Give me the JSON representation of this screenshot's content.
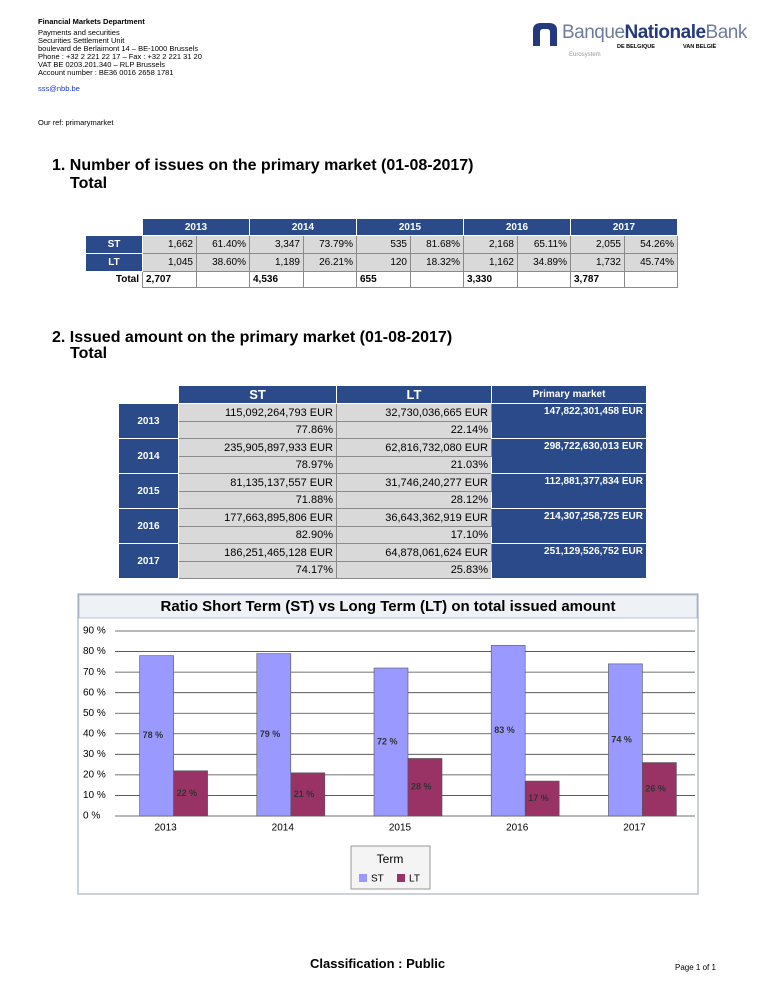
{
  "header": {
    "department": "Financial Markets Department",
    "lines": [
      "Payments and securities",
      "Securities Settlement Unit",
      "boulevard de Berlaimont 14 – BE-1000 Brussels",
      "Phone : +32 2 221 22 17 – Fax : +32 2 221 31 20",
      "VAT BE 0203.201.340 – RLP Brussels",
      "Account number : BE36 0016 2658 1781"
    ],
    "email": "sss@nbb.be",
    "reference": "Our ref: primarymarket",
    "logo": {
      "banque": "Banque",
      "nationale": "Nationale",
      "bank": "Bank",
      "sub_left": "DE BELGIQUE",
      "sub_right": "VAN BELGIË",
      "eurosystem": "Eurosystem"
    }
  },
  "section1": {
    "title": "1. Number of issues on the primary market (01-08-2017)",
    "subtitle": "Total"
  },
  "issues_table": {
    "years": [
      "2013",
      "2014",
      "2015",
      "2016",
      "2017"
    ],
    "rows": [
      {
        "label": "ST",
        "cells": [
          [
            "1,662",
            "61.40%"
          ],
          [
            "3,347",
            "73.79%"
          ],
          [
            "535",
            "81.68%"
          ],
          [
            "2,168",
            "65.11%"
          ],
          [
            "2,055",
            "54.26%"
          ]
        ]
      },
      {
        "label": "LT",
        "cells": [
          [
            "1,045",
            "38.60%"
          ],
          [
            "1,189",
            "26.21%"
          ],
          [
            "120",
            "18.32%"
          ],
          [
            "1,162",
            "34.89%"
          ],
          [
            "1,732",
            "45.74%"
          ]
        ]
      }
    ],
    "total": {
      "label": "Total",
      "cells": [
        "2,707",
        "4,536",
        "655",
        "3,330",
        "3,787"
      ]
    }
  },
  "section2": {
    "title": "2. Issued amount on the primary market (01-08-2017)",
    "subtitle": "Total"
  },
  "amount_table": {
    "headers": [
      "ST",
      "LT",
      "Primary market"
    ],
    "rows": [
      {
        "year": "2013",
        "st_amount": "115,092,264,793 EUR",
        "st_pct": "77.86%",
        "lt_amount": "32,730,036,665 EUR",
        "lt_pct": "22.14%",
        "total": "147,822,301,458 EUR"
      },
      {
        "year": "2014",
        "st_amount": "235,905,897,933 EUR",
        "st_pct": "78.97%",
        "lt_amount": "62,816,732,080 EUR",
        "lt_pct": "21.03%",
        "total": "298,722,630,013 EUR"
      },
      {
        "year": "2015",
        "st_amount": "81,135,137,557 EUR",
        "st_pct": "71.88%",
        "lt_amount": "31,746,240,277 EUR",
        "lt_pct": "28.12%",
        "total": "112,881,377,834 EUR"
      },
      {
        "year": "2016",
        "st_amount": "177,663,895,806 EUR",
        "st_pct": "82.90%",
        "lt_amount": "36,643,362,919 EUR",
        "lt_pct": "17.10%",
        "total": "214,307,258,725 EUR"
      },
      {
        "year": "2017",
        "st_amount": "186,251,465,128 EUR",
        "st_pct": "74.17%",
        "lt_amount": "64,878,061,624 EUR",
        "lt_pct": "25.83%",
        "total": "251,129,526,752 EUR"
      }
    ]
  },
  "chart_data": {
    "type": "bar",
    "title": "Ratio Short Term (ST) vs Long Term (LT) on total issued amount",
    "categories": [
      "2013",
      "2014",
      "2015",
      "2016",
      "2017"
    ],
    "series": [
      {
        "name": "ST",
        "color": "#9999ff",
        "values": [
          78,
          79,
          72,
          83,
          74
        ],
        "value_labels": [
          "78 %",
          "79 %",
          "72 %",
          "83 %",
          "74 %"
        ]
      },
      {
        "name": "LT",
        "color": "#993366",
        "values": [
          22,
          21,
          28,
          17,
          26
        ],
        "value_labels": [
          "22 %",
          "21 %",
          "28 %",
          "17 %",
          "26 %"
        ]
      }
    ],
    "ylim": [
      0,
      90
    ],
    "yticks": [
      {
        "value": 0,
        "label": "0 %"
      },
      {
        "value": 10,
        "label": "10 %"
      },
      {
        "value": 20,
        "label": "20 %"
      },
      {
        "value": 30,
        "label": "30 %"
      },
      {
        "value": 40,
        "label": "40 %"
      },
      {
        "value": 50,
        "label": "50 %"
      },
      {
        "value": 60,
        "label": "60 %"
      },
      {
        "value": 70,
        "label": "70 %"
      },
      {
        "value": 80,
        "label": "80 %"
      },
      {
        "value": 90,
        "label": "90 %"
      }
    ],
    "grid": true,
    "legend": "bottom",
    "legend_title": "Term"
  },
  "footer": {
    "classification": "Classification : Public",
    "page": "Page 1 of 1"
  }
}
